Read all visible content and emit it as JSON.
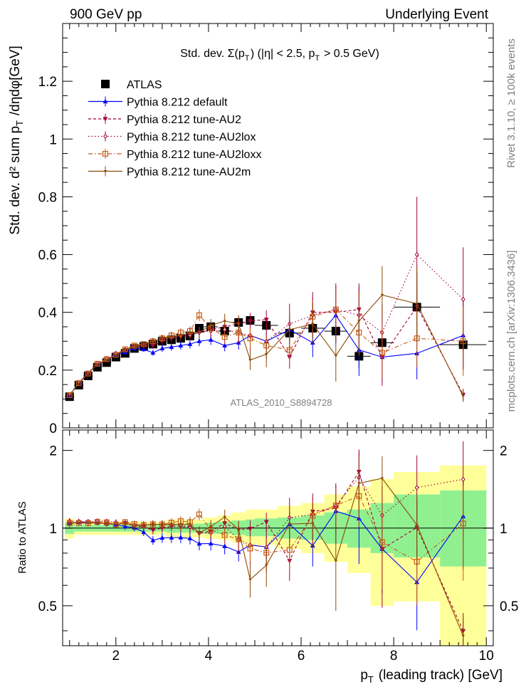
{
  "header": {
    "left": "900 GeV pp",
    "right": "Underlying Event"
  },
  "side_labels": {
    "rivet": "Rivet 3.1.10, ≥ 100k events",
    "mcplots": "mcplots.cern.ch [arXiv:1306.3436]"
  },
  "watermark": "ATLAS_2010_S8894728",
  "main_panel": {
    "title_text": "Std. dev. Σ(p_T) (|η| < 2.5, p_T > 0.5 GeV)",
    "ylabel": "Std. dev. d² sum p_T /dηdφ[GeV]",
    "yticks": [
      "0",
      "0.2",
      "0.4",
      "0.6",
      "0.8",
      "1",
      "1.2"
    ]
  },
  "ratio_panel": {
    "ylabel": "Ratio to ATLAS",
    "yticks_left": [
      "0.5",
      "1",
      "2"
    ],
    "yticks_right": [
      "0.5",
      "1",
      "2"
    ]
  },
  "xaxis": {
    "label": "p_T (leading track) [GeV]",
    "ticks": [
      "2",
      "4",
      "6",
      "8",
      "10"
    ]
  },
  "legend": [
    {
      "key": "atlas",
      "label": "ATLAS"
    },
    {
      "key": "default",
      "label": "Pythia 8.212 default"
    },
    {
      "key": "au2",
      "label": "Pythia 8.212 tune-AU2"
    },
    {
      "key": "au2lox",
      "label": "Pythia 8.212 tune-AU2lox"
    },
    {
      "key": "au2loxx",
      "label": "Pythia 8.212 tune-AU2loxx"
    },
    {
      "key": "au2m",
      "label": "Pythia 8.212 tune-AU2m"
    }
  ],
  "colors": {
    "blue": "#0000ff",
    "crimson": "#a3003a",
    "orange": "#c85a14",
    "brown": "#8b4a08",
    "band_green": "#90f090",
    "band_yellow": "#ffff99"
  },
  "chart_data": {
    "type": "scatter",
    "xlim": [
      0.85,
      10.15
    ],
    "ylim_main": [
      0,
      1.4
    ],
    "ylim_ratio": [
      0.35,
      2.4
    ],
    "ratio_scale": "log",
    "x": [
      1.0,
      1.2,
      1.4,
      1.6,
      1.8,
      2.0,
      2.2,
      2.4,
      2.6,
      2.8,
      3.0,
      3.2,
      3.4,
      3.6,
      3.8,
      4.05,
      4.35,
      4.65,
      4.9,
      5.25,
      5.75,
      6.25,
      6.75,
      7.25,
      7.75,
      8.5,
      9.5
    ],
    "bin_edges": [
      0.9,
      1.1,
      1.3,
      1.5,
      1.7,
      1.9,
      2.1,
      2.3,
      2.5,
      2.7,
      2.9,
      3.1,
      3.3,
      3.5,
      3.7,
      3.9,
      4.2,
      4.5,
      4.8,
      5.0,
      5.5,
      6.0,
      6.5,
      7.0,
      7.5,
      8.0,
      9.0,
      10.0
    ],
    "band_green": [
      [
        0.95,
        1.05
      ],
      [
        0.97,
        1.03
      ],
      [
        0.97,
        1.03
      ],
      [
        0.97,
        1.03
      ],
      [
        0.97,
        1.03
      ],
      [
        0.97,
        1.03
      ],
      [
        0.97,
        1.03
      ],
      [
        0.97,
        1.03
      ],
      [
        0.97,
        1.03
      ],
      [
        0.97,
        1.03
      ],
      [
        0.97,
        1.03
      ],
      [
        0.96,
        1.04
      ],
      [
        0.96,
        1.04
      ],
      [
        0.96,
        1.04
      ],
      [
        0.96,
        1.04
      ],
      [
        0.95,
        1.05
      ],
      [
        0.95,
        1.06
      ],
      [
        0.94,
        1.07
      ],
      [
        0.93,
        1.08
      ],
      [
        0.93,
        1.09
      ],
      [
        0.91,
        1.1
      ],
      [
        0.9,
        1.12
      ],
      [
        0.87,
        1.15
      ],
      [
        0.84,
        1.18
      ],
      [
        0.8,
        1.25
      ],
      [
        0.77,
        1.35
      ],
      [
        0.71,
        1.4
      ]
    ],
    "band_yellow": [
      [
        0.91,
        1.09
      ],
      [
        0.94,
        1.06
      ],
      [
        0.94,
        1.06
      ],
      [
        0.94,
        1.06
      ],
      [
        0.94,
        1.06
      ],
      [
        0.94,
        1.06
      ],
      [
        0.94,
        1.06
      ],
      [
        0.94,
        1.06
      ],
      [
        0.94,
        1.06
      ],
      [
        0.94,
        1.06
      ],
      [
        0.94,
        1.06
      ],
      [
        0.92,
        1.08
      ],
      [
        0.92,
        1.08
      ],
      [
        0.92,
        1.08
      ],
      [
        0.92,
        1.08
      ],
      [
        0.91,
        1.1
      ],
      [
        0.9,
        1.12
      ],
      [
        0.88,
        1.15
      ],
      [
        0.85,
        1.18
      ],
      [
        0.86,
        1.18
      ],
      [
        0.83,
        1.22
      ],
      [
        0.8,
        1.25
      ],
      [
        0.74,
        1.35
      ],
      [
        0.67,
        1.45
      ],
      [
        0.5,
        1.55
      ],
      [
        0.52,
        1.65
      ],
      [
        0.35,
        1.75
      ]
    ],
    "series": [
      {
        "name": "ATLAS",
        "key": "atlas",
        "style": "atlas",
        "values": [
          0.108,
          0.148,
          0.18,
          0.21,
          0.226,
          0.245,
          0.258,
          0.275,
          0.282,
          0.29,
          0.3,
          0.305,
          0.31,
          0.318,
          0.345,
          0.35,
          0.335,
          0.365,
          0.372,
          0.355,
          0.328,
          0.345,
          0.335,
          0.248,
          0.295,
          0.418,
          0.288
        ],
        "errors": [
          0.003,
          0.004,
          0.004,
          0.005,
          0.005,
          0.005,
          0.006,
          0.006,
          0.007,
          0.007,
          0.008,
          0.009,
          0.009,
          0.01,
          0.011,
          0.012,
          0.014,
          0.015,
          0.017,
          0.02,
          0.024,
          0.03,
          0.035,
          0.04,
          0.05,
          0.07,
          0.08
        ]
      },
      {
        "name": "Pythia 8.212 default",
        "key": "default",
        "style": "default",
        "values": [
          0.113,
          0.156,
          0.19,
          0.22,
          0.235,
          0.253,
          0.262,
          0.276,
          0.272,
          0.26,
          0.275,
          0.28,
          0.285,
          0.29,
          0.3,
          0.305,
          0.285,
          0.295,
          0.32,
          0.3,
          0.34,
          0.295,
          0.39,
          0.27,
          0.245,
          0.258,
          0.32
        ],
        "errors": [
          0.003,
          0.004,
          0.005,
          0.005,
          0.006,
          0.007,
          0.008,
          0.009,
          0.009,
          0.01,
          0.012,
          0.013,
          0.014,
          0.015,
          0.017,
          0.018,
          0.02,
          0.024,
          0.027,
          0.03,
          0.04,
          0.05,
          0.1,
          0.09,
          0.08,
          0.09,
          0.12
        ]
      },
      {
        "name": "Pythia 8.212 tune-AU2",
        "key": "au2",
        "style": "au2",
        "values": [
          0.112,
          0.156,
          0.19,
          0.22,
          0.236,
          0.255,
          0.27,
          0.28,
          0.285,
          0.285,
          0.3,
          0.31,
          0.315,
          0.32,
          0.33,
          0.34,
          0.35,
          0.36,
          0.37,
          0.375,
          0.245,
          0.4,
          0.4,
          0.41,
          0.245,
          0.42,
          0.115
        ],
        "errors": [
          0.003,
          0.004,
          0.005,
          0.005,
          0.006,
          0.007,
          0.008,
          0.009,
          0.01,
          0.011,
          0.012,
          0.013,
          0.015,
          0.016,
          0.018,
          0.02,
          0.022,
          0.025,
          0.028,
          0.032,
          0.04,
          0.05,
          0.07,
          0.09,
          0.1,
          0.12,
          0.02
        ]
      },
      {
        "name": "Pythia 8.212 tune-AU2lox",
        "key": "au2lox",
        "style": "au2lox",
        "values": [
          0.115,
          0.157,
          0.19,
          0.224,
          0.24,
          0.258,
          0.27,
          0.283,
          0.29,
          0.3,
          0.31,
          0.315,
          0.318,
          0.32,
          0.33,
          0.335,
          0.34,
          0.33,
          0.32,
          0.3,
          0.36,
          0.39,
          0.41,
          0.39,
          0.33,
          0.6,
          0.445
        ],
        "errors": [
          0.003,
          0.004,
          0.005,
          0.005,
          0.006,
          0.007,
          0.008,
          0.009,
          0.01,
          0.011,
          0.012,
          0.013,
          0.015,
          0.017,
          0.02,
          0.025,
          0.03,
          0.04,
          0.05,
          0.06,
          0.07,
          0.08,
          0.09,
          0.1,
          0.1,
          0.2,
          0.18
        ]
      },
      {
        "name": "Pythia 8.212 tune-AU2loxx",
        "key": "au2loxx",
        "style": "au2loxx",
        "values": [
          0.113,
          0.155,
          0.188,
          0.222,
          0.238,
          0.253,
          0.272,
          0.285,
          0.29,
          0.3,
          0.31,
          0.32,
          0.33,
          0.335,
          0.39,
          0.345,
          0.315,
          0.33,
          0.31,
          0.285,
          0.27,
          0.385,
          0.41,
          0.33,
          0.26,
          0.31,
          0.3
        ],
        "errors": [
          0.003,
          0.004,
          0.005,
          0.005,
          0.006,
          0.007,
          0.008,
          0.009,
          0.01,
          0.011,
          0.012,
          0.013,
          0.015,
          0.017,
          0.02,
          0.022,
          0.025,
          0.03,
          0.035,
          0.04,
          0.05,
          0.06,
          0.07,
          0.08,
          0.09,
          0.1,
          0.12
        ]
      },
      {
        "name": "Pythia 8.212 tune-AU2m",
        "key": "au2m",
        "style": "au2m",
        "values": [
          0.113,
          0.155,
          0.188,
          0.22,
          0.235,
          0.253,
          0.27,
          0.28,
          0.29,
          0.3,
          0.31,
          0.315,
          0.32,
          0.33,
          0.33,
          0.355,
          0.37,
          0.36,
          0.235,
          0.255,
          0.34,
          0.36,
          0.25,
          0.37,
          0.46,
          0.43,
          0.11
        ],
        "errors": [
          0.003,
          0.004,
          0.005,
          0.005,
          0.006,
          0.007,
          0.008,
          0.009,
          0.01,
          0.011,
          0.012,
          0.013,
          0.015,
          0.017,
          0.02,
          0.022,
          0.025,
          0.03,
          0.035,
          0.045,
          0.06,
          0.07,
          0.09,
          0.1,
          0.1,
          0.13,
          0.02
        ]
      }
    ]
  }
}
